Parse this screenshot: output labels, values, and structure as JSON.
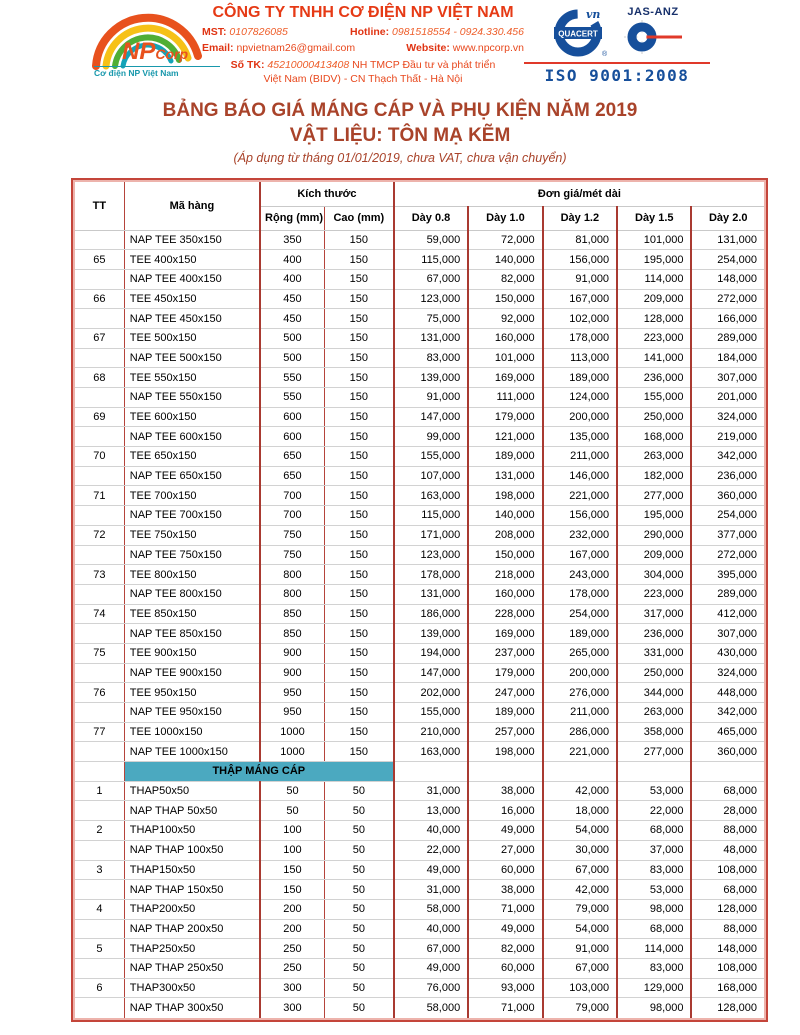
{
  "header": {
    "company_name": "CÔNG TY TNHH CƠ ĐIỆN NP VIỆT NAM",
    "mst_label": "MST:",
    "mst_value": "0107826085",
    "hotline_label": "Hotline:",
    "hotline_value": "0981518554 - 0924.330.456",
    "email_label": "Email:",
    "email_value": "npvietnam26@gmail.com",
    "website_label": "Website:",
    "website_value": "www.npcorp.vn",
    "bank_label": "Số TK:",
    "bank_number": "45210000413408",
    "bank_rest": "NH TMCP Đầu tư và phát triển",
    "bank_line2": "Việt Nam (BIDV) - CN Thạch Thất - Hà Nội",
    "logo": {
      "np": "NP",
      "corp": "Corp",
      "tagline": "Cơ điện NP Việt Nam"
    },
    "certs": {
      "quacert": "QUACERT",
      "quacert_vn": "vn",
      "jas_anz": "JAS-ANZ",
      "iso": "ISO 9001:2008"
    }
  },
  "title": {
    "line1": "BẢNG BÁO GIÁ MÁNG CÁP VÀ PHỤ KIỆN NĂM 2019",
    "line2": "VẬT LIỆU: TÔN MẠ KẼM",
    "line3": "(Áp dụng từ tháng 01/01/2019, chưa VAT, chưa vận chuyển)"
  },
  "colors": {
    "brand_orange": "#e8431c",
    "title_red": "#a9432a",
    "table_border_red": "#b03328",
    "section_teal": "#4ba9c0",
    "cert_blue": "#164f9b"
  },
  "table": {
    "headers": {
      "tt": "TT",
      "code": "Mã hàng",
      "size": "Kích thước",
      "price_group": "Đơn giá/mét dài",
      "width": "Rộng (mm)",
      "height": "Cao (mm)",
      "thickness": [
        "Dày 0.8",
        "Dày 1.0",
        "Dày 1.2",
        "Dày 1.5",
        "Dày 2.0"
      ]
    },
    "rows": [
      {
        "tt": "",
        "name": "NAP TEE 350x150",
        "w": "350",
        "h": "150",
        "p": [
          "59,000",
          "72,000",
          "81,000",
          "101,000",
          "131,000"
        ]
      },
      {
        "tt": "65",
        "name": "TEE 400x150",
        "w": "400",
        "h": "150",
        "p": [
          "115,000",
          "140,000",
          "156,000",
          "195,000",
          "254,000"
        ]
      },
      {
        "tt": "",
        "name": "NAP TEE 400x150",
        "w": "400",
        "h": "150",
        "p": [
          "67,000",
          "82,000",
          "91,000",
          "114,000",
          "148,000"
        ]
      },
      {
        "tt": "66",
        "name": "TEE 450x150",
        "w": "450",
        "h": "150",
        "p": [
          "123,000",
          "150,000",
          "167,000",
          "209,000",
          "272,000"
        ]
      },
      {
        "tt": "",
        "name": "NAP TEE 450x150",
        "w": "450",
        "h": "150",
        "p": [
          "75,000",
          "92,000",
          "102,000",
          "128,000",
          "166,000"
        ]
      },
      {
        "tt": "67",
        "name": "TEE 500x150",
        "w": "500",
        "h": "150",
        "p": [
          "131,000",
          "160,000",
          "178,000",
          "223,000",
          "289,000"
        ]
      },
      {
        "tt": "",
        "name": "NAP TEE 500x150",
        "w": "500",
        "h": "150",
        "p": [
          "83,000",
          "101,000",
          "113,000",
          "141,000",
          "184,000"
        ]
      },
      {
        "tt": "68",
        "name": "TEE 550x150",
        "w": "550",
        "h": "150",
        "p": [
          "139,000",
          "169,000",
          "189,000",
          "236,000",
          "307,000"
        ]
      },
      {
        "tt": "",
        "name": "NAP TEE 550x150",
        "w": "550",
        "h": "150",
        "p": [
          "91,000",
          "111,000",
          "124,000",
          "155,000",
          "201,000"
        ]
      },
      {
        "tt": "69",
        "name": "TEE 600x150",
        "w": "600",
        "h": "150",
        "p": [
          "147,000",
          "179,000",
          "200,000",
          "250,000",
          "324,000"
        ]
      },
      {
        "tt": "",
        "name": "NAP TEE 600x150",
        "w": "600",
        "h": "150",
        "p": [
          "99,000",
          "121,000",
          "135,000",
          "168,000",
          "219,000"
        ]
      },
      {
        "tt": "70",
        "name": "TEE 650x150",
        "w": "650",
        "h": "150",
        "p": [
          "155,000",
          "189,000",
          "211,000",
          "263,000",
          "342,000"
        ]
      },
      {
        "tt": "",
        "name": "NAP TEE 650x150",
        "w": "650",
        "h": "150",
        "p": [
          "107,000",
          "131,000",
          "146,000",
          "182,000",
          "236,000"
        ]
      },
      {
        "tt": "71",
        "name": "TEE 700x150",
        "w": "700",
        "h": "150",
        "p": [
          "163,000",
          "198,000",
          "221,000",
          "277,000",
          "360,000"
        ]
      },
      {
        "tt": "",
        "name": "NAP TEE 700x150",
        "w": "700",
        "h": "150",
        "p": [
          "115,000",
          "140,000",
          "156,000",
          "195,000",
          "254,000"
        ]
      },
      {
        "tt": "72",
        "name": "TEE 750x150",
        "w": "750",
        "h": "150",
        "p": [
          "171,000",
          "208,000",
          "232,000",
          "290,000",
          "377,000"
        ]
      },
      {
        "tt": "",
        "name": "NAP TEE 750x150",
        "w": "750",
        "h": "150",
        "p": [
          "123,000",
          "150,000",
          "167,000",
          "209,000",
          "272,000"
        ]
      },
      {
        "tt": "73",
        "name": "TEE 800x150",
        "w": "800",
        "h": "150",
        "p": [
          "178,000",
          "218,000",
          "243,000",
          "304,000",
          "395,000"
        ]
      },
      {
        "tt": "",
        "name": "NAP TEE 800x150",
        "w": "800",
        "h": "150",
        "p": [
          "131,000",
          "160,000",
          "178,000",
          "223,000",
          "289,000"
        ]
      },
      {
        "tt": "74",
        "name": "TEE 850x150",
        "w": "850",
        "h": "150",
        "p": [
          "186,000",
          "228,000",
          "254,000",
          "317,000",
          "412,000"
        ]
      },
      {
        "tt": "",
        "name": "NAP TEE 850x150",
        "w": "850",
        "h": "150",
        "p": [
          "139,000",
          "169,000",
          "189,000",
          "236,000",
          "307,000"
        ]
      },
      {
        "tt": "75",
        "name": "TEE 900x150",
        "w": "900",
        "h": "150",
        "p": [
          "194,000",
          "237,000",
          "265,000",
          "331,000",
          "430,000"
        ]
      },
      {
        "tt": "",
        "name": "NAP TEE 900x150",
        "w": "900",
        "h": "150",
        "p": [
          "147,000",
          "179,000",
          "200,000",
          "250,000",
          "324,000"
        ]
      },
      {
        "tt": "76",
        "name": "TEE 950x150",
        "w": "950",
        "h": "150",
        "p": [
          "202,000",
          "247,000",
          "276,000",
          "344,000",
          "448,000"
        ]
      },
      {
        "tt": "",
        "name": "NAP TEE 950x150",
        "w": "950",
        "h": "150",
        "p": [
          "155,000",
          "189,000",
          "211,000",
          "263,000",
          "342,000"
        ]
      },
      {
        "tt": "77",
        "name": "TEE 1000x150",
        "w": "1000",
        "h": "150",
        "p": [
          "210,000",
          "257,000",
          "286,000",
          "358,000",
          "465,000"
        ]
      },
      {
        "tt": "",
        "name": "NAP TEE 1000x150",
        "w": "1000",
        "h": "150",
        "p": [
          "163,000",
          "198,000",
          "221,000",
          "277,000",
          "360,000"
        ]
      },
      {
        "section": "THẬP MÁNG CÁP"
      },
      {
        "tt": "1",
        "name": "THAP50x50",
        "w": "50",
        "h": "50",
        "p": [
          "31,000",
          "38,000",
          "42,000",
          "53,000",
          "68,000"
        ]
      },
      {
        "tt": "",
        "name": "NAP THAP 50x50",
        "w": "50",
        "h": "50",
        "p": [
          "13,000",
          "16,000",
          "18,000",
          "22,000",
          "28,000"
        ]
      },
      {
        "tt": "2",
        "name": "THAP100x50",
        "w": "100",
        "h": "50",
        "p": [
          "40,000",
          "49,000",
          "54,000",
          "68,000",
          "88,000"
        ]
      },
      {
        "tt": "",
        "name": "NAP THAP 100x50",
        "w": "100",
        "h": "50",
        "p": [
          "22,000",
          "27,000",
          "30,000",
          "37,000",
          "48,000"
        ]
      },
      {
        "tt": "3",
        "name": "THAP150x50",
        "w": "150",
        "h": "50",
        "p": [
          "49,000",
          "60,000",
          "67,000",
          "83,000",
          "108,000"
        ]
      },
      {
        "tt": "",
        "name": "NAP THAP 150x50",
        "w": "150",
        "h": "50",
        "p": [
          "31,000",
          "38,000",
          "42,000",
          "53,000",
          "68,000"
        ]
      },
      {
        "tt": "4",
        "name": "THAP200x50",
        "w": "200",
        "h": "50",
        "p": [
          "58,000",
          "71,000",
          "79,000",
          "98,000",
          "128,000"
        ]
      },
      {
        "tt": "",
        "name": "NAP THAP 200x50",
        "w": "200",
        "h": "50",
        "p": [
          "40,000",
          "49,000",
          "54,000",
          "68,000",
          "88,000"
        ]
      },
      {
        "tt": "5",
        "name": "THAP250x50",
        "w": "250",
        "h": "50",
        "p": [
          "67,000",
          "82,000",
          "91,000",
          "114,000",
          "148,000"
        ]
      },
      {
        "tt": "",
        "name": "NAP THAP 250x50",
        "w": "250",
        "h": "50",
        "p": [
          "49,000",
          "60,000",
          "67,000",
          "83,000",
          "108,000"
        ]
      },
      {
        "tt": "6",
        "name": "THAP300x50",
        "w": "300",
        "h": "50",
        "p": [
          "76,000",
          "93,000",
          "103,000",
          "129,000",
          "168,000"
        ]
      },
      {
        "tt": "",
        "name": "NAP THAP 300x50",
        "w": "300",
        "h": "50",
        "p": [
          "58,000",
          "71,000",
          "79,000",
          "98,000",
          "128,000"
        ]
      }
    ]
  }
}
